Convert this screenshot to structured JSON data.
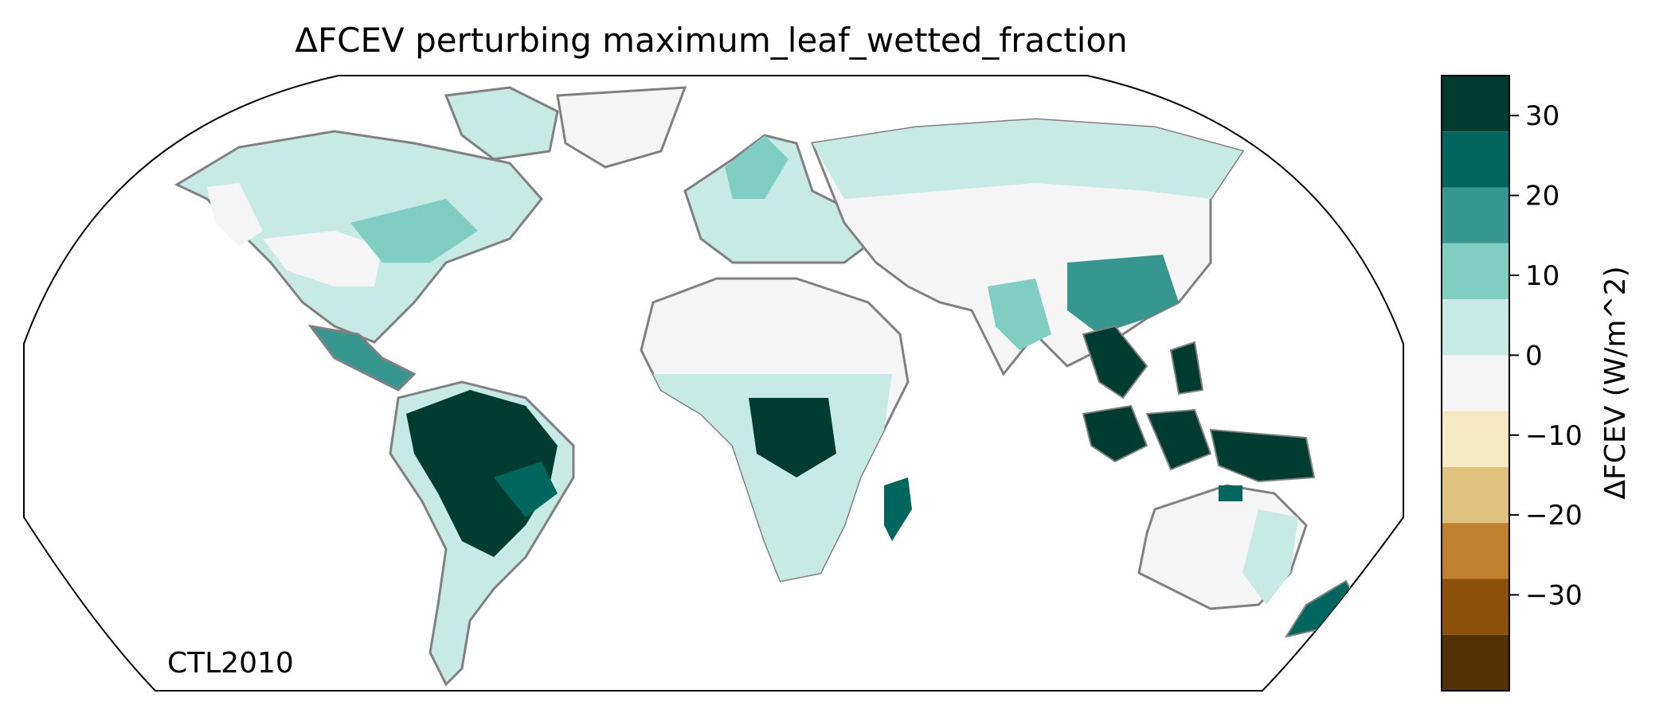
{
  "title": "ΔFCEV perturbing maximum_leaf_wetted_fraction",
  "annotation": "CTL2010",
  "colorbar": {
    "label": "ΔFCEV (W/m^2)",
    "ticks": [
      "30",
      "20",
      "10",
      "0",
      "−10",
      "−20",
      "−30"
    ],
    "range": [
      -35,
      35
    ],
    "bins": [
      {
        "min": 28,
        "max": 35,
        "color": "#003c30"
      },
      {
        "min": 21,
        "max": 28,
        "color": "#01665e"
      },
      {
        "min": 14,
        "max": 21,
        "color": "#35978f"
      },
      {
        "min": 7,
        "max": 14,
        "color": "#80cdc1"
      },
      {
        "min": 0,
        "max": 7,
        "color": "#c7eae5"
      },
      {
        "min": -7,
        "max": 0,
        "color": "#f5f5f5"
      },
      {
        "min": -14,
        "max": -7,
        "color": "#f6e8c3"
      },
      {
        "min": -21,
        "max": -14,
        "color": "#dfc27d"
      },
      {
        "min": -28,
        "max": -21,
        "color": "#bf812d"
      },
      {
        "min": -35,
        "max": -28,
        "color": "#8c510a"
      },
      {
        "min": -42,
        "max": -35,
        "color": "#543005"
      }
    ]
  },
  "map": {
    "projection": "Robinson",
    "coastline_color": "#808080",
    "border_color": "#c8c8c8",
    "regions": [
      {
        "name": "North America",
        "level": "0 to 7 and 7 to 14"
      },
      {
        "name": "Amazon",
        "level": "28 to 35"
      },
      {
        "name": "Central Africa",
        "level": "28 to 35"
      },
      {
        "name": "Southeast Asia",
        "level": "21 to 35"
      },
      {
        "name": "Sahara and Arabia",
        "level": "-7 to 0"
      }
    ]
  }
}
